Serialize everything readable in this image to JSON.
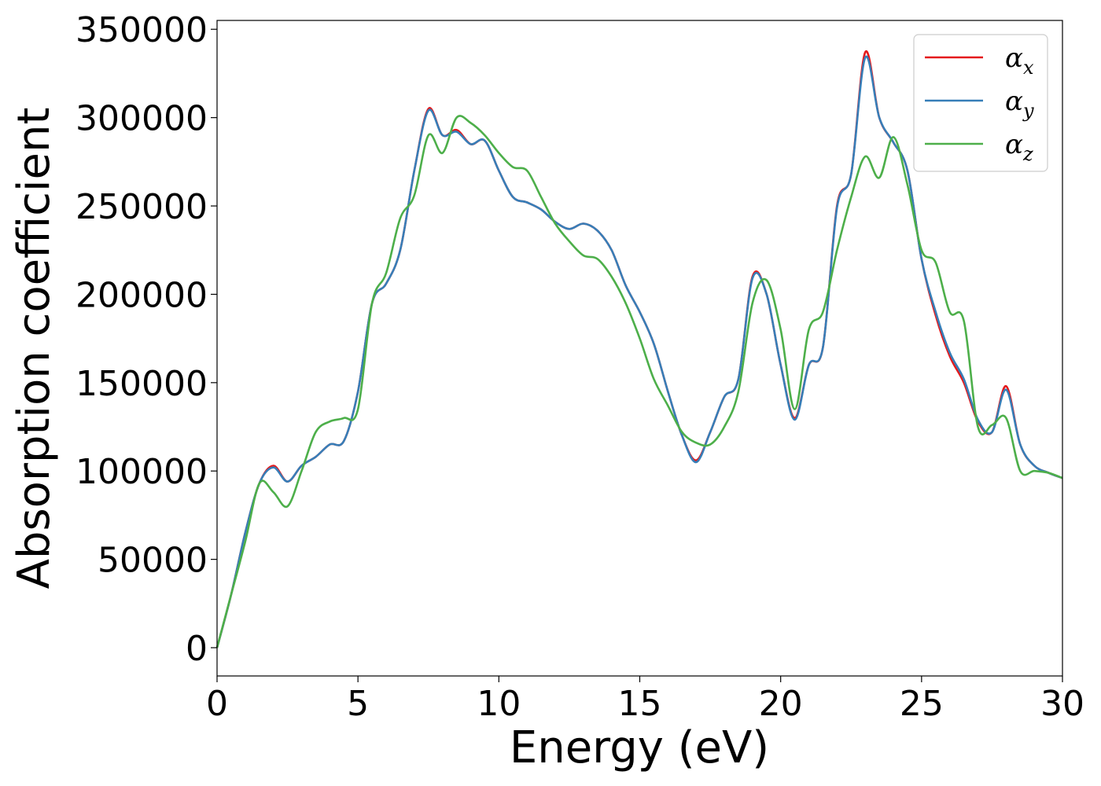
{
  "chart_data": {
    "type": "line",
    "title": "",
    "xlabel": "Energy (eV)",
    "ylabel": "Absorption coefficient",
    "xlim": [
      0,
      30
    ],
    "ylim": [
      -16000,
      355000
    ],
    "x_ticks": [
      0,
      5,
      10,
      15,
      20,
      25,
      30
    ],
    "y_ticks": [
      0,
      50000,
      100000,
      150000,
      200000,
      250000,
      300000,
      350000
    ],
    "grid": false,
    "legend_position": "top-right",
    "x": [
      0,
      0.5,
      1,
      1.5,
      2,
      2.5,
      3,
      3.5,
      4,
      4.5,
      5,
      5.5,
      6,
      6.5,
      7,
      7.5,
      8,
      8.5,
      9,
      9.5,
      10,
      10.5,
      11,
      11.5,
      12,
      12.5,
      13,
      13.5,
      14,
      14.5,
      15,
      15.5,
      16,
      16.5,
      17,
      17.5,
      18,
      18.5,
      19,
      19.5,
      20,
      20.5,
      21,
      21.5,
      22,
      22.5,
      23,
      23.5,
      24,
      24.5,
      25,
      25.5,
      26,
      26.5,
      27,
      27.5,
      28,
      28.5,
      29,
      29.5,
      30
    ],
    "series": [
      {
        "name": "α",
        "subscript": "x",
        "color": "#e41a1c",
        "values": [
          0,
          30000,
          65000,
          93000,
          103000,
          94000,
          103000,
          108000,
          115000,
          117000,
          145000,
          195000,
          206000,
          225000,
          270000,
          305000,
          290000,
          293000,
          285000,
          287000,
          270000,
          255000,
          252000,
          248000,
          241000,
          237000,
          240000,
          236000,
          225000,
          205000,
          190000,
          172000,
          145000,
          120000,
          106000,
          122000,
          142000,
          152000,
          210000,
          200000,
          160000,
          130000,
          160000,
          170000,
          250000,
          268000,
          337000,
          300000,
          286000,
          270000,
          220000,
          188000,
          165000,
          150000,
          128000,
          122000,
          148000,
          115000,
          103000,
          99000,
          96000
        ]
      },
      {
        "name": "α",
        "subscript": "y",
        "color": "#377eb8",
        "values": [
          0,
          30000,
          65000,
          93000,
          102000,
          94000,
          103000,
          108000,
          115000,
          117000,
          145000,
          195000,
          206000,
          225000,
          270000,
          304000,
          290000,
          292000,
          285000,
          287000,
          270000,
          255000,
          252000,
          248000,
          241000,
          237000,
          240000,
          236000,
          225000,
          205000,
          190000,
          172000,
          145000,
          120000,
          105000,
          122000,
          142000,
          152000,
          209000,
          200000,
          160000,
          129000,
          160000,
          170000,
          249000,
          268000,
          334000,
          300000,
          286000,
          270000,
          220000,
          190000,
          167000,
          152000,
          129000,
          122000,
          146000,
          115000,
          103000,
          99000,
          96000
        ]
      },
      {
        "name": "α",
        "subscript": "z",
        "color": "#4daf4a",
        "values": [
          0,
          30000,
          60000,
          93000,
          88000,
          80000,
          100000,
          122000,
          128000,
          130000,
          135000,
          195000,
          212000,
          243000,
          256000,
          290000,
          280000,
          300000,
          297000,
          290000,
          280000,
          272000,
          270000,
          255000,
          240000,
          230000,
          222000,
          220000,
          210000,
          195000,
          175000,
          152000,
          137000,
          122000,
          116000,
          115000,
          125000,
          145000,
          195000,
          208000,
          180000,
          135000,
          180000,
          190000,
          225000,
          255000,
          278000,
          266000,
          289000,
          262000,
          225000,
          218000,
          190000,
          185000,
          125000,
          126000,
          130000,
          100000,
          100000,
          99000,
          96000
        ]
      }
    ]
  }
}
